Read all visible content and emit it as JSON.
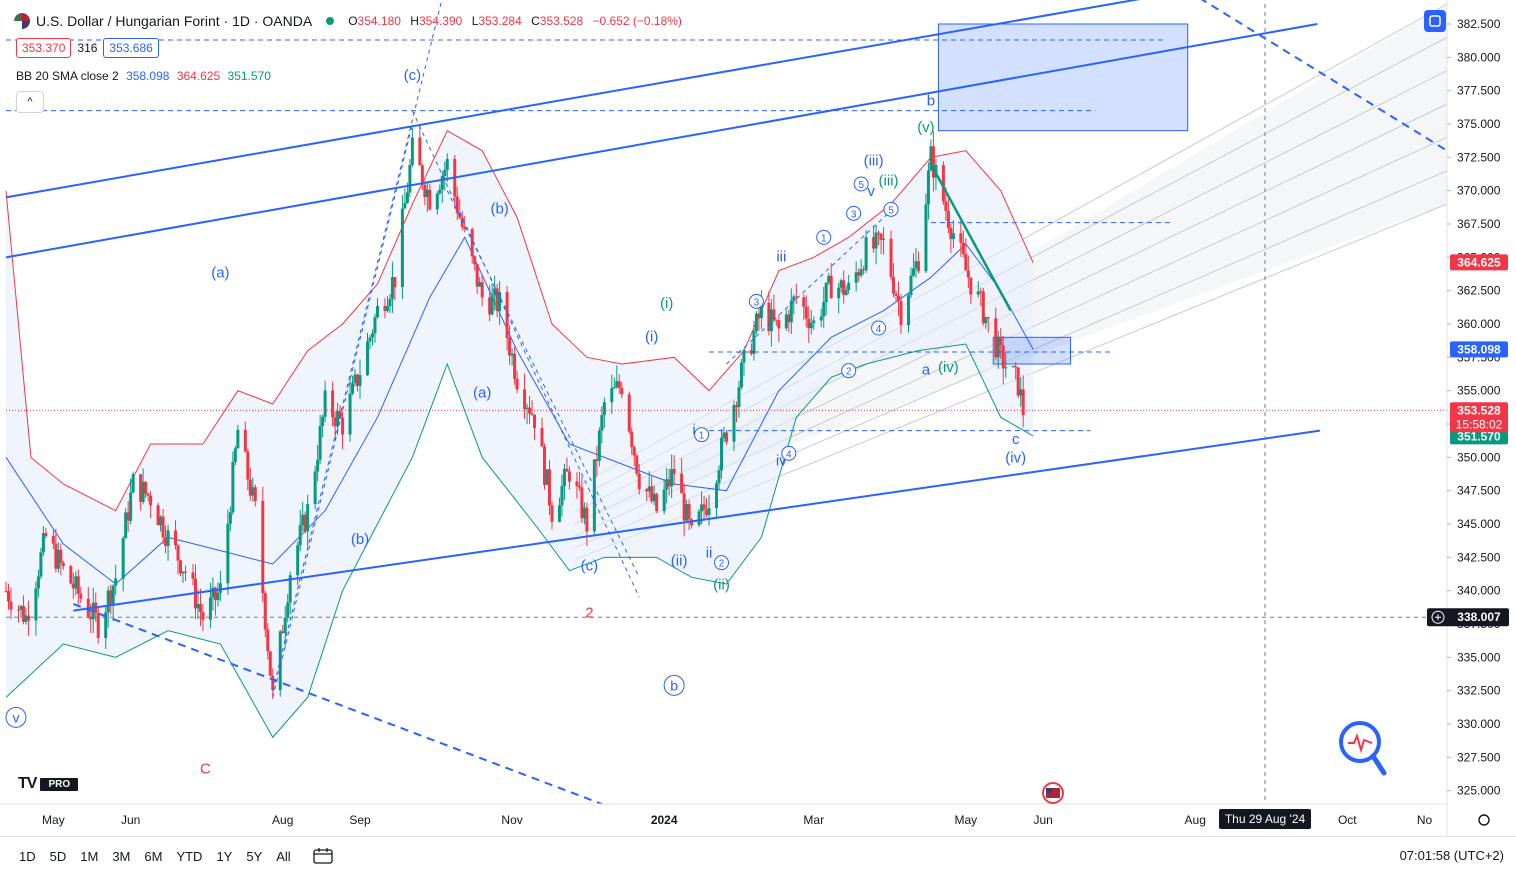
{
  "header": {
    "title": "U.S. Dollar / Hungarian Forint · 1D · OANDA",
    "ohlc": [
      {
        "label": "O",
        "value": "354.180"
      },
      {
        "label": "H",
        "value": "354.390"
      },
      {
        "label": "L",
        "value": "353.284"
      },
      {
        "label": "C",
        "value": "353.528"
      },
      {
        "label": "",
        "value": "−0.652 (−0.18%)"
      }
    ],
    "sell_price": "353.370",
    "spread": "316",
    "buy_price": "353.686",
    "indicator_name": "BB 20 SMA close 2",
    "bb_basis": "358.098",
    "bb_upper": "364.625",
    "bb_lower": "351.570",
    "collapse_glyph": "^"
  },
  "bottom_bar": {
    "timeframes": [
      "1D",
      "5D",
      "1M",
      "3M",
      "6M",
      "YTD",
      "1Y",
      "5Y",
      "All"
    ],
    "clock": "07:01:58 (UTC+2)"
  },
  "branding": {
    "logo": "TV",
    "badge": "PRO"
  },
  "colors": {
    "up": "#089981",
    "down": "#f23645",
    "accent": "#2962ff",
    "band": "#e3edfb",
    "channel": "#2962ff"
  },
  "icons": [
    "flag-icon",
    "market-status-dot-icon",
    "layout-square-icon",
    "calendar-range-icon",
    "crosshair-plus-icon",
    "magnifier-pulse-icon",
    "us-flag-event-icon",
    "settings-gear-icon"
  ],
  "chart_data": {
    "type": "candlestick",
    "symbol": "USDHUF",
    "ylim": [
      324,
      384
    ],
    "y_ticks": [
      325.0,
      327.5,
      330.0,
      332.5,
      335.0,
      337.5,
      340.0,
      342.5,
      345.0,
      347.5,
      350.0,
      352.5,
      355.0,
      357.5,
      360.0,
      362.5,
      365.0,
      367.5,
      370.0,
      372.5,
      375.0,
      377.5,
      380.0,
      382.5
    ],
    "y_tick_labels": [
      "325.000",
      "327.500",
      "330.000",
      "332.500",
      "335.000",
      "337.500",
      "340.000",
      "342.500",
      "345.000",
      "347.500",
      "350.000",
      "352.500",
      "355.000",
      "357.500",
      "360.000",
      "362.500",
      "365.000",
      "367.500",
      "370.000",
      "372.500",
      "375.000",
      "377.500",
      "380.000",
      "382.500"
    ],
    "x_ticks": [
      {
        "label": "May",
        "date": "2023-05-01"
      },
      {
        "label": "Jun",
        "date": "2023-06-01"
      },
      {
        "label": "Aug",
        "date": "2023-08-01"
      },
      {
        "label": "Sep",
        "date": "2023-09-01"
      },
      {
        "label": "Nov",
        "date": "2023-11-01"
      },
      {
        "label": "2024",
        "date": "2024-01-01"
      },
      {
        "label": "Mar",
        "date": "2024-03-01"
      },
      {
        "label": "May",
        "date": "2024-05-01"
      },
      {
        "label": "Jun",
        "date": "2024-06-01"
      },
      {
        "label": "Aug",
        "date": "2024-08-01"
      },
      {
        "label": "Oct",
        "date": "2024-10-01"
      },
      {
        "label": "No",
        "date": "2024-11-01"
      }
    ],
    "x_range": [
      "2023-04-12",
      "2024-11-10"
    ],
    "current_price": 353.528,
    "countdown": "15:58:02",
    "cursor_price": "338.007",
    "cursor_date_label": "Thu 29 Aug '24",
    "cursor_date": "2024-08-29",
    "axis_badges": [
      {
        "value": 364.625,
        "label": "364.625",
        "color": "#f23645"
      },
      {
        "value": 358.098,
        "label": "358.098",
        "color": "#2962ff"
      },
      {
        "value": 351.57,
        "label": "351.570",
        "color": "#089981"
      }
    ],
    "price_path": [
      [
        "2023-04-12",
        340.0
      ],
      [
        "2023-04-20",
        338.0
      ],
      [
        "2023-04-28",
        344.0
      ],
      [
        "2023-05-05",
        341.5
      ],
      [
        "2023-05-12",
        339.5
      ],
      [
        "2023-05-19",
        337.5
      ],
      [
        "2023-05-26",
        341.0
      ],
      [
        "2023-06-02",
        348.0
      ],
      [
        "2023-06-09",
        347.0
      ],
      [
        "2023-06-16",
        344.0
      ],
      [
        "2023-06-23",
        341.5
      ],
      [
        "2023-06-30",
        338.0
      ],
      [
        "2023-07-07",
        340.0
      ],
      [
        "2023-07-14",
        352.0
      ],
      [
        "2023-07-21",
        346.0
      ],
      [
        "2023-07-28",
        332.0
      ],
      [
        "2023-08-04",
        341.5
      ],
      [
        "2023-08-11",
        346.0
      ],
      [
        "2023-08-18",
        354.0
      ],
      [
        "2023-08-25",
        352.5
      ],
      [
        "2023-09-01",
        356.5
      ],
      [
        "2023-09-08",
        361.0
      ],
      [
        "2023-09-15",
        363.5
      ],
      [
        "2023-09-22",
        373.0
      ],
      [
        "2023-09-29",
        369.5
      ],
      [
        "2023-10-06",
        372.0
      ],
      [
        "2023-10-13",
        366.5
      ],
      [
        "2023-10-20",
        362.0
      ],
      [
        "2023-10-27",
        361.5
      ],
      [
        "2023-11-03",
        356.0
      ],
      [
        "2023-11-10",
        353.0
      ],
      [
        "2023-11-17",
        346.0
      ],
      [
        "2023-11-24",
        349.0
      ],
      [
        "2023-12-01",
        345.0
      ],
      [
        "2023-12-08",
        354.0
      ],
      [
        "2023-12-15",
        355.5
      ],
      [
        "2023-12-22",
        348.5
      ],
      [
        "2023-12-29",
        346.0
      ],
      [
        "2024-01-05",
        349.0
      ],
      [
        "2024-01-12",
        344.0
      ],
      [
        "2024-01-19",
        347.0
      ],
      [
        "2024-01-26",
        352.0
      ],
      [
        "2024-02-02",
        357.0
      ],
      [
        "2024-02-09",
        361.0
      ],
      [
        "2024-02-16",
        359.5
      ],
      [
        "2024-02-23",
        362.0
      ],
      [
        "2024-03-01",
        360.0
      ],
      [
        "2024-03-08",
        363.0
      ],
      [
        "2024-03-15",
        362.5
      ],
      [
        "2024-03-22",
        365.5
      ],
      [
        "2024-03-29",
        366.0
      ],
      [
        "2024-04-05",
        361.0
      ],
      [
        "2024-04-12",
        365.0
      ],
      [
        "2024-04-17",
        372.5
      ],
      [
        "2024-04-24",
        368.0
      ],
      [
        "2024-05-01",
        364.0
      ],
      [
        "2024-05-08",
        361.0
      ],
      [
        "2024-05-15",
        357.5
      ],
      [
        "2024-05-22",
        355.5
      ],
      [
        "2024-05-24",
        353.5
      ]
    ],
    "bb_upper_path": [
      [
        "2023-04-12",
        370.0
      ],
      [
        "2023-04-22",
        350.0
      ],
      [
        "2023-05-05",
        348.0
      ],
      [
        "2023-05-26",
        346.0
      ],
      [
        "2023-06-09",
        351.0
      ],
      [
        "2023-06-30",
        351.0
      ],
      [
        "2023-07-14",
        355.0
      ],
      [
        "2023-07-28",
        354.0
      ],
      [
        "2023-08-11",
        358.0
      ],
      [
        "2023-08-25",
        360.0
      ],
      [
        "2023-09-08",
        363.0
      ],
      [
        "2023-09-22",
        369.0
      ],
      [
        "2023-10-06",
        374.5
      ],
      [
        "2023-10-20",
        373.0
      ],
      [
        "2023-11-03",
        368.0
      ],
      [
        "2023-11-17",
        360.0
      ],
      [
        "2023-12-01",
        357.5
      ],
      [
        "2023-12-15",
        357.0
      ],
      [
        "2024-01-05",
        357.5
      ],
      [
        "2024-01-19",
        355.0
      ],
      [
        "2024-02-02",
        358.0
      ],
      [
        "2024-02-16",
        364.0
      ],
      [
        "2024-03-01",
        365.0
      ],
      [
        "2024-03-15",
        366.5
      ],
      [
        "2024-04-01",
        369.0
      ],
      [
        "2024-04-17",
        372.5
      ],
      [
        "2024-05-01",
        373.0
      ],
      [
        "2024-05-15",
        370.0
      ],
      [
        "2024-05-28",
        364.6
      ]
    ],
    "bb_basis_path": [
      [
        "2023-04-12",
        350.0
      ],
      [
        "2023-05-05",
        343.5
      ],
      [
        "2023-05-26",
        340.5
      ],
      [
        "2023-06-16",
        344.0
      ],
      [
        "2023-07-07",
        343.0
      ],
      [
        "2023-07-28",
        342.0
      ],
      [
        "2023-08-18",
        346.0
      ],
      [
        "2023-09-08",
        353.0
      ],
      [
        "2023-09-29",
        362.0
      ],
      [
        "2023-10-13",
        366.5
      ],
      [
        "2023-11-03",
        358.0
      ],
      [
        "2023-11-24",
        351.0
      ],
      [
        "2023-12-15",
        349.5
      ],
      [
        "2024-01-05",
        348.0
      ],
      [
        "2024-01-26",
        347.5
      ],
      [
        "2024-02-16",
        355.0
      ],
      [
        "2024-03-08",
        359.0
      ],
      [
        "2024-03-29",
        361.0
      ],
      [
        "2024-04-17",
        363.5
      ],
      [
        "2024-05-01",
        366.0
      ],
      [
        "2024-05-15",
        362.5
      ],
      [
        "2024-05-28",
        358.1
      ]
    ],
    "bb_lower_path": [
      [
        "2023-04-12",
        332.0
      ],
      [
        "2023-05-05",
        336.0
      ],
      [
        "2023-05-26",
        335.0
      ],
      [
        "2023-06-16",
        337.0
      ],
      [
        "2023-07-07",
        336.0
      ],
      [
        "2023-07-28",
        329.0
      ],
      [
        "2023-08-11",
        332.0
      ],
      [
        "2023-08-25",
        340.0
      ],
      [
        "2023-09-08",
        345.0
      ],
      [
        "2023-09-22",
        350.0
      ],
      [
        "2023-10-06",
        357.0
      ],
      [
        "2023-10-20",
        350.0
      ],
      [
        "2023-11-10",
        345.0
      ],
      [
        "2023-11-24",
        341.5
      ],
      [
        "2023-12-08",
        342.5
      ],
      [
        "2023-12-29",
        342.5
      ],
      [
        "2024-01-12",
        341.0
      ],
      [
        "2024-01-26",
        340.5
      ],
      [
        "2024-02-09",
        344.0
      ],
      [
        "2024-02-23",
        353.0
      ],
      [
        "2024-03-08",
        356.0
      ],
      [
        "2024-03-22",
        357.0
      ],
      [
        "2024-04-12",
        358.0
      ],
      [
        "2024-05-01",
        358.5
      ],
      [
        "2024-05-15",
        353.0
      ],
      [
        "2024-05-28",
        351.6
      ]
    ],
    "drawings": {
      "channel_lines": [
        {
          "from": [
            "2023-04-12",
            369.5
          ],
          "to": [
            "2024-07-29",
            385.0
          ],
          "style": "solid"
        },
        {
          "from": [
            "2023-04-12",
            365.0
          ],
          "to": [
            "2024-09-19",
            382.5
          ],
          "style": "solid"
        },
        {
          "from": [
            "2023-05-09",
            338.5
          ],
          "to": [
            "2024-09-20",
            352.0
          ],
          "style": "solid"
        }
      ],
      "dashed_lines": [
        {
          "from": [
            "2023-05-09",
            339.0
          ],
          "to": [
            "2023-12-07",
            324.0
          ]
        },
        {
          "from": [
            "2024-07-29",
            385.0
          ],
          "to": [
            "2024-11-10",
            373.0
          ]
        },
        {
          "from": [
            "2023-07-28",
            332.5
          ],
          "to": [
            "2023-10-06",
            386.0
          ]
        },
        {
          "from": [
            "2023-07-28",
            332.0
          ],
          "to": [
            "2023-09-22",
            375.0
          ]
        },
        {
          "from": [
            "2023-09-22",
            376.0
          ],
          "to": [
            "2023-12-22",
            339.5
          ]
        },
        {
          "from": [
            "2023-10-06",
            370.0
          ],
          "to": [
            "2023-12-22",
            341.0
          ]
        },
        {
          "from": [
            "2024-01-26",
            357.0
          ],
          "to": [
            "2024-04-01",
            368.5
          ]
        }
      ],
      "horizontal_levels": [
        {
          "y": 376.0,
          "from": "2023-04-12",
          "to": "2024-06-22"
        },
        {
          "y": 381.3,
          "from": "2023-04-12",
          "to": "2024-07-20"
        },
        {
          "y": 367.6,
          "from": "2024-04-17",
          "to": "2024-07-22"
        },
        {
          "y": 357.9,
          "from": "2024-01-19",
          "to": "2024-06-28"
        },
        {
          "y": 352.0,
          "from": "2024-01-19",
          "to": "2024-06-20"
        }
      ],
      "teal_trendline": {
        "from": [
          "2024-04-17",
          372.0
        ],
        "to": [
          "2024-05-19",
          361.0
        ]
      },
      "boxes": [
        {
          "from": [
            "2024-04-20",
            382.5
          ],
          "to": [
            "2024-07-29",
            374.5
          ]
        },
        {
          "from": [
            "2024-05-12",
            359.0
          ],
          "to": [
            "2024-06-12",
            357.0
          ]
        }
      ],
      "fan_channel": {
        "origin": [
          "2023-11-26",
          345.0
        ],
        "top_end": [
          "2024-11-10",
          384.0
        ],
        "bottom_end": [
          "2024-11-10",
          369.0
        ],
        "count": 7
      }
    },
    "wave_labels": [
      {
        "text": "(c)",
        "date": "2023-09-22",
        "y": 378.3,
        "color": "#2962ff"
      },
      {
        "text": "(b)",
        "date": "2023-10-27",
        "y": 368.3,
        "color": "#2962ff"
      },
      {
        "text": "(a)",
        "date": "2023-07-07",
        "y": 363.5,
        "color": "#2962ff"
      },
      {
        "text": "(a)",
        "date": "2023-10-20",
        "y": 354.5,
        "color": "#2962ff"
      },
      {
        "text": "(b)",
        "date": "2023-09-01",
        "y": 343.5,
        "color": "#2962ff"
      },
      {
        "text": "(c)",
        "date": "2023-12-02",
        "y": 341.5,
        "color": "#2962ff"
      },
      {
        "text": "2",
        "date": "2023-12-02",
        "y": 338.0,
        "color": "#f23645"
      },
      {
        "text": "C",
        "date": "2023-07-01",
        "y": 326.3,
        "color": "#f23645"
      },
      {
        "text": "(i)",
        "date": "2023-12-27",
        "y": 358.7,
        "color": "#2962ff"
      },
      {
        "text": "(i)",
        "date": "2024-01-02",
        "y": 361.2,
        "color": "#089981"
      },
      {
        "text": "(ii)",
        "date": "2024-01-07",
        "y": 341.9,
        "color": "#2962ff"
      },
      {
        "text": "(ii)",
        "date": "2024-01-24",
        "y": 340.1,
        "color": "#089981"
      },
      {
        "text": "ii",
        "date": "2024-01-19",
        "y": 342.5,
        "color": "#2962ff"
      },
      {
        "text": "i",
        "date": "2024-01-13",
        "y": 351.7,
        "color": "#2962ff"
      },
      {
        "text": "iii",
        "date": "2024-02-17",
        "y": 364.7,
        "color": "#2962ff"
      },
      {
        "text": "iv",
        "date": "2024-02-17",
        "y": 349.4,
        "color": "#2962ff"
      },
      {
        "text": "(iii)",
        "date": "2024-03-25",
        "y": 371.9,
        "color": "#2962ff"
      },
      {
        "text": "(iii)",
        "date": "2024-03-31",
        "y": 370.4,
        "color": "#089981"
      },
      {
        "text": "v",
        "date": "2024-03-24",
        "y": 369.6,
        "color": "#2962ff"
      },
      {
        "text": "(v)",
        "date": "2024-04-15",
        "y": 374.4,
        "color": "#089981"
      },
      {
        "text": "b",
        "date": "2024-04-17",
        "y": 376.4,
        "color": "#2962ff"
      },
      {
        "text": "a",
        "date": "2024-04-15",
        "y": 356.2,
        "color": "#2962ff"
      },
      {
        "text": "(iv)",
        "date": "2024-04-24",
        "y": 356.4,
        "color": "#089981"
      },
      {
        "text": "c",
        "date": "2024-05-21",
        "y": 351.0,
        "color": "#2962ff"
      },
      {
        "text": "(iv)",
        "date": "2024-05-21",
        "y": 349.6,
        "color": "#2962ff"
      }
    ],
    "circled_labels": [
      {
        "text": "1",
        "date": "2024-01-16",
        "y": 351.7
      },
      {
        "text": "2",
        "date": "2024-01-24",
        "y": 342.1
      },
      {
        "text": "3",
        "date": "2024-02-07",
        "y": 361.7
      },
      {
        "text": "4",
        "date": "2024-02-20",
        "y": 350.3
      },
      {
        "text": "1",
        "date": "2024-03-05",
        "y": 366.5
      },
      {
        "text": "2",
        "date": "2024-03-15",
        "y": 356.5
      },
      {
        "text": "3",
        "date": "2024-03-17",
        "y": 368.3
      },
      {
        "text": "4",
        "date": "2024-03-27",
        "y": 359.7
      },
      {
        "text": "5",
        "date": "2024-03-20",
        "y": 370.5
      },
      {
        "text": "5",
        "date": "2024-04-01",
        "y": 368.6
      },
      {
        "text": "b",
        "date": "2024-01-05",
        "y": 332.9
      },
      {
        "text": "v",
        "date": "2023-04-16",
        "y": 330.5
      }
    ]
  }
}
